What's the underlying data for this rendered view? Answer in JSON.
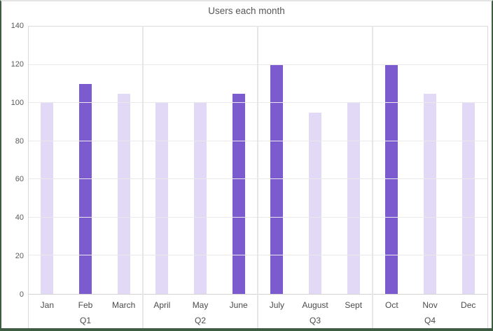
{
  "window": {
    "background": "#ffffff",
    "frame_border_color": "#3e5c41",
    "frame_top_border_color": "#e4e4e4"
  },
  "chart_data": {
    "type": "bar",
    "title": "Users each month",
    "xlabel": "",
    "ylabel": "",
    "ylim": [
      0,
      140
    ],
    "yticks": [
      0,
      20,
      40,
      60,
      80,
      100,
      120,
      140
    ],
    "grid": true,
    "legend": "none",
    "categories": [
      "Jan",
      "Feb",
      "March",
      "April",
      "May",
      "June",
      "July",
      "August",
      "Sept",
      "Oct",
      "Nov",
      "Dec"
    ],
    "values": [
      100,
      110,
      105,
      100,
      100,
      105,
      120,
      95,
      100,
      120,
      105,
      100
    ],
    "emphasized": [
      false,
      true,
      false,
      false,
      false,
      true,
      true,
      false,
      false,
      true,
      false,
      false
    ],
    "groups": [
      {
        "label": "Q1",
        "categories": [
          "Jan",
          "Feb",
          "March"
        ],
        "values": [
          100,
          110,
          105
        ],
        "emphasized": [
          false,
          true,
          false
        ]
      },
      {
        "label": "Q2",
        "categories": [
          "April",
          "May",
          "June"
        ],
        "values": [
          100,
          100,
          105
        ],
        "emphasized": [
          false,
          false,
          true
        ]
      },
      {
        "label": "Q3",
        "categories": [
          "July",
          "August",
          "Sept"
        ],
        "values": [
          120,
          95,
          100
        ],
        "emphasized": [
          true,
          false,
          false
        ]
      },
      {
        "label": "Q4",
        "categories": [
          "Oct",
          "Nov",
          "Dec"
        ],
        "values": [
          120,
          105,
          100
        ],
        "emphasized": [
          true,
          false,
          false
        ]
      }
    ],
    "colors": {
      "bar_default": "#e1d9f5",
      "bar_emphasis": "#7b5bce",
      "gridline": "#e9e9e9",
      "separator": "#e6e6e6",
      "axis_line": "#d2d2d2",
      "tick_text": "#5a5a5a",
      "label_text": "#4b4b4b",
      "title_text": "#575757"
    }
  }
}
